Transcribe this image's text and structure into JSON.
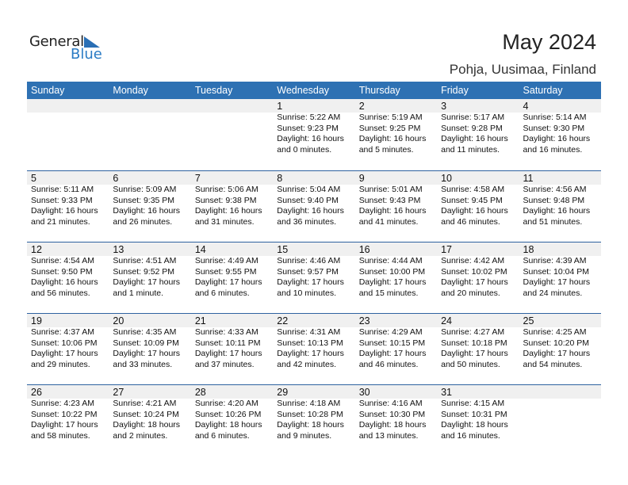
{
  "logo": {
    "text1": "General",
    "text2": "Blue"
  },
  "header": {
    "title": "May 2024",
    "location": "Pohja, Uusimaa, Finland"
  },
  "colors": {
    "header_bg": "#2e71b3",
    "day_band": "#f0f0f0",
    "brand_blue": "#2a7bc4"
  },
  "weekdays": [
    "Sunday",
    "Monday",
    "Tuesday",
    "Wednesday",
    "Thursday",
    "Friday",
    "Saturday"
  ],
  "weeks": [
    [
      null,
      null,
      null,
      {
        "d": "1",
        "sr": "Sunrise: 5:22 AM",
        "ss": "Sunset: 9:23 PM",
        "dl1": "Daylight: 16 hours",
        "dl2": "and 0 minutes."
      },
      {
        "d": "2",
        "sr": "Sunrise: 5:19 AM",
        "ss": "Sunset: 9:25 PM",
        "dl1": "Daylight: 16 hours",
        "dl2": "and 5 minutes."
      },
      {
        "d": "3",
        "sr": "Sunrise: 5:17 AM",
        "ss": "Sunset: 9:28 PM",
        "dl1": "Daylight: 16 hours",
        "dl2": "and 11 minutes."
      },
      {
        "d": "4",
        "sr": "Sunrise: 5:14 AM",
        "ss": "Sunset: 9:30 PM",
        "dl1": "Daylight: 16 hours",
        "dl2": "and 16 minutes."
      }
    ],
    [
      {
        "d": "5",
        "sr": "Sunrise: 5:11 AM",
        "ss": "Sunset: 9:33 PM",
        "dl1": "Daylight: 16 hours",
        "dl2": "and 21 minutes."
      },
      {
        "d": "6",
        "sr": "Sunrise: 5:09 AM",
        "ss": "Sunset: 9:35 PM",
        "dl1": "Daylight: 16 hours",
        "dl2": "and 26 minutes."
      },
      {
        "d": "7",
        "sr": "Sunrise: 5:06 AM",
        "ss": "Sunset: 9:38 PM",
        "dl1": "Daylight: 16 hours",
        "dl2": "and 31 minutes."
      },
      {
        "d": "8",
        "sr": "Sunrise: 5:04 AM",
        "ss": "Sunset: 9:40 PM",
        "dl1": "Daylight: 16 hours",
        "dl2": "and 36 minutes."
      },
      {
        "d": "9",
        "sr": "Sunrise: 5:01 AM",
        "ss": "Sunset: 9:43 PM",
        "dl1": "Daylight: 16 hours",
        "dl2": "and 41 minutes."
      },
      {
        "d": "10",
        "sr": "Sunrise: 4:58 AM",
        "ss": "Sunset: 9:45 PM",
        "dl1": "Daylight: 16 hours",
        "dl2": "and 46 minutes."
      },
      {
        "d": "11",
        "sr": "Sunrise: 4:56 AM",
        "ss": "Sunset: 9:48 PM",
        "dl1": "Daylight: 16 hours",
        "dl2": "and 51 minutes."
      }
    ],
    [
      {
        "d": "12",
        "sr": "Sunrise: 4:54 AM",
        "ss": "Sunset: 9:50 PM",
        "dl1": "Daylight: 16 hours",
        "dl2": "and 56 minutes."
      },
      {
        "d": "13",
        "sr": "Sunrise: 4:51 AM",
        "ss": "Sunset: 9:52 PM",
        "dl1": "Daylight: 17 hours",
        "dl2": "and 1 minute."
      },
      {
        "d": "14",
        "sr": "Sunrise: 4:49 AM",
        "ss": "Sunset: 9:55 PM",
        "dl1": "Daylight: 17 hours",
        "dl2": "and 6 minutes."
      },
      {
        "d": "15",
        "sr": "Sunrise: 4:46 AM",
        "ss": "Sunset: 9:57 PM",
        "dl1": "Daylight: 17 hours",
        "dl2": "and 10 minutes."
      },
      {
        "d": "16",
        "sr": "Sunrise: 4:44 AM",
        "ss": "Sunset: 10:00 PM",
        "dl1": "Daylight: 17 hours",
        "dl2": "and 15 minutes."
      },
      {
        "d": "17",
        "sr": "Sunrise: 4:42 AM",
        "ss": "Sunset: 10:02 PM",
        "dl1": "Daylight: 17 hours",
        "dl2": "and 20 minutes."
      },
      {
        "d": "18",
        "sr": "Sunrise: 4:39 AM",
        "ss": "Sunset: 10:04 PM",
        "dl1": "Daylight: 17 hours",
        "dl2": "and 24 minutes."
      }
    ],
    [
      {
        "d": "19",
        "sr": "Sunrise: 4:37 AM",
        "ss": "Sunset: 10:06 PM",
        "dl1": "Daylight: 17 hours",
        "dl2": "and 29 minutes."
      },
      {
        "d": "20",
        "sr": "Sunrise: 4:35 AM",
        "ss": "Sunset: 10:09 PM",
        "dl1": "Daylight: 17 hours",
        "dl2": "and 33 minutes."
      },
      {
        "d": "21",
        "sr": "Sunrise: 4:33 AM",
        "ss": "Sunset: 10:11 PM",
        "dl1": "Daylight: 17 hours",
        "dl2": "and 37 minutes."
      },
      {
        "d": "22",
        "sr": "Sunrise: 4:31 AM",
        "ss": "Sunset: 10:13 PM",
        "dl1": "Daylight: 17 hours",
        "dl2": "and 42 minutes."
      },
      {
        "d": "23",
        "sr": "Sunrise: 4:29 AM",
        "ss": "Sunset: 10:15 PM",
        "dl1": "Daylight: 17 hours",
        "dl2": "and 46 minutes."
      },
      {
        "d": "24",
        "sr": "Sunrise: 4:27 AM",
        "ss": "Sunset: 10:18 PM",
        "dl1": "Daylight: 17 hours",
        "dl2": "and 50 minutes."
      },
      {
        "d": "25",
        "sr": "Sunrise: 4:25 AM",
        "ss": "Sunset: 10:20 PM",
        "dl1": "Daylight: 17 hours",
        "dl2": "and 54 minutes."
      }
    ],
    [
      {
        "d": "26",
        "sr": "Sunrise: 4:23 AM",
        "ss": "Sunset: 10:22 PM",
        "dl1": "Daylight: 17 hours",
        "dl2": "and 58 minutes."
      },
      {
        "d": "27",
        "sr": "Sunrise: 4:21 AM",
        "ss": "Sunset: 10:24 PM",
        "dl1": "Daylight: 18 hours",
        "dl2": "and 2 minutes."
      },
      {
        "d": "28",
        "sr": "Sunrise: 4:20 AM",
        "ss": "Sunset: 10:26 PM",
        "dl1": "Daylight: 18 hours",
        "dl2": "and 6 minutes."
      },
      {
        "d": "29",
        "sr": "Sunrise: 4:18 AM",
        "ss": "Sunset: 10:28 PM",
        "dl1": "Daylight: 18 hours",
        "dl2": "and 9 minutes."
      },
      {
        "d": "30",
        "sr": "Sunrise: 4:16 AM",
        "ss": "Sunset: 10:30 PM",
        "dl1": "Daylight: 18 hours",
        "dl2": "and 13 minutes."
      },
      {
        "d": "31",
        "sr": "Sunrise: 4:15 AM",
        "ss": "Sunset: 10:31 PM",
        "dl1": "Daylight: 18 hours",
        "dl2": "and 16 minutes."
      },
      null
    ]
  ]
}
